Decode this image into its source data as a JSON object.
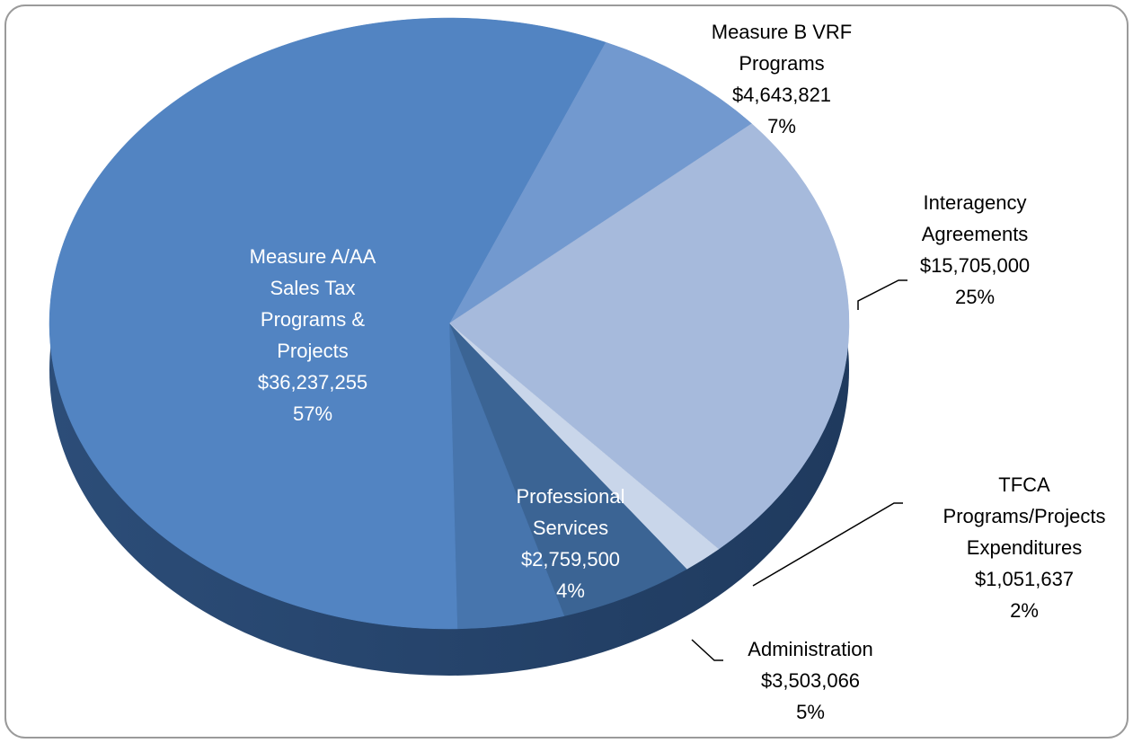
{
  "chart_data": {
    "type": "pie",
    "categories": [
      "Measure B VRF Programs",
      "Interagency Agreements",
      "TFCA Programs/Projects Expenditures",
      "Administration",
      "Professional Services",
      "Measure A/AA Sales Tax Programs & Projects"
    ],
    "values": [
      4643821,
      15705000,
      1051637,
      3503066,
      2759500,
      36237255
    ],
    "value_labels": [
      "$4,643,821",
      "$15,705,000",
      "$1,051,637",
      "$3,503,066",
      "$2,759,500",
      "$36,237,255"
    ],
    "percents": [
      7,
      25,
      2,
      5,
      4,
      57
    ],
    "percent_labels": [
      "7%",
      "25%",
      "2%",
      "5%",
      "4%",
      "57%"
    ],
    "colors": [
      "#7299cf",
      "#a6badc",
      "#c9d6ea",
      "#3b6494",
      "#4775ad",
      "#5284c2"
    ]
  }
}
